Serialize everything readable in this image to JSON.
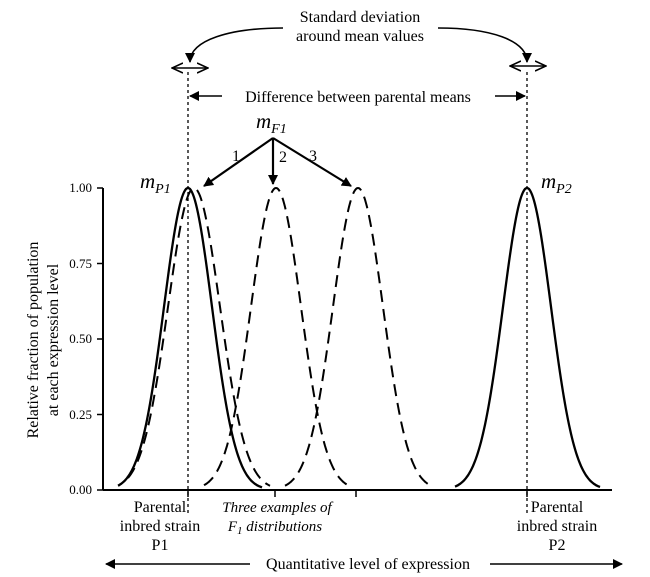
{
  "chart_data": {
    "type": "line",
    "ylabel_lines": [
      "Relative fraction of population",
      "at each expression level"
    ],
    "xlabel": "Quantitative level of expression",
    "y_ticks": [
      "1.00",
      "0.75",
      "0.50",
      "0.25",
      "0.00"
    ],
    "ylim": [
      0,
      1
    ],
    "grid": false,
    "series": [
      {
        "name": "P1",
        "style": "solid",
        "peak": 1.0
      },
      {
        "name": "F1 example 1",
        "style": "dashed",
        "peak": 1.0
      },
      {
        "name": "F1 example 2",
        "style": "dashed",
        "peak": 1.0
      },
      {
        "name": "F1 example 3",
        "style": "dashed",
        "peak": 1.0
      },
      {
        "name": "P2",
        "style": "solid",
        "peak": 1.0
      }
    ]
  },
  "annotations": {
    "std_dev_line1": "Standard deviation",
    "std_dev_line2": "around mean values",
    "parental_difference": "Difference between parental means",
    "mF1_main": "m",
    "mF1_sub": "F1",
    "mP1_main": "m",
    "mP1_sub": "P1",
    "mP2_main": "m",
    "mP2_sub": "P2",
    "arrow_1": "1",
    "arrow_2": "2",
    "arrow_3": "3"
  },
  "x_labels": {
    "p1_line1": "Parental",
    "p1_line2": "inbred strain",
    "p1_line3": "P1",
    "f1_line1": "Three examples of",
    "f1_line2_main": "F",
    "f1_line2_sub": "1",
    "f1_line2_rest": " distributions",
    "p2_line1": "Parental",
    "p2_line2": "inbred strain",
    "p2_line3": "P2"
  }
}
